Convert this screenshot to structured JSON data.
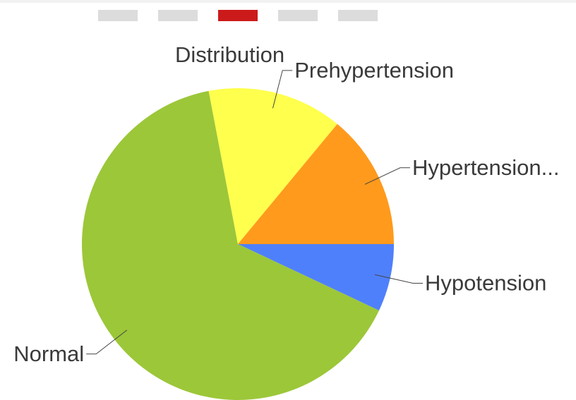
{
  "chart_data": {
    "type": "pie",
    "title": "Distribution",
    "categories": [
      "Hypotension",
      "Normal",
      "Prehypertension",
      "Hypertension..."
    ],
    "values": [
      7,
      65,
      14,
      14
    ],
    "colors": [
      "#4f80fb",
      "#9cc739",
      "#ffff4d",
      "#ff9a1c"
    ],
    "start_angle": 0,
    "direction": "clockwise"
  }
}
